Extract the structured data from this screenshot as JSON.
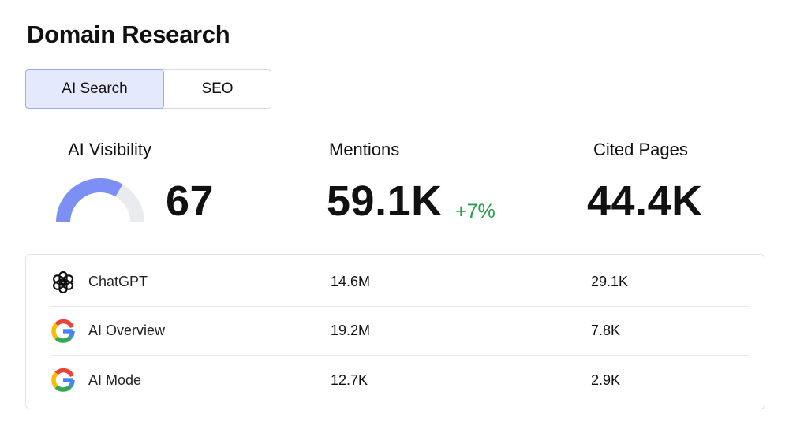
{
  "page": {
    "title": "Domain Research"
  },
  "tabs": [
    {
      "label": "AI Search",
      "active": true
    },
    {
      "label": "SEO",
      "active": false
    }
  ],
  "metrics": {
    "visibility": {
      "label": "AI Visibility",
      "value": "67",
      "gauge_fraction": 0.67
    },
    "mentions": {
      "label": "Mentions",
      "value": "59.1K",
      "delta": "+7%"
    },
    "cited_pages": {
      "label": "Cited Pages",
      "value": "44.4K"
    }
  },
  "providers": [
    {
      "icon": "chatgpt-icon",
      "name": "ChatGPT",
      "mentions": "14.6M",
      "cited": "29.1K"
    },
    {
      "icon": "google-icon",
      "name": "AI Overview",
      "mentions": "19.2M",
      "cited": "7.8K"
    },
    {
      "icon": "google-icon",
      "name": "AI Mode",
      "mentions": "12.7K",
      "cited": "2.9K"
    }
  ],
  "colors": {
    "accent": "#7b8ff5",
    "gauge_track": "#eaebee",
    "tab_active_bg": "#e4e9fc",
    "tab_active_border": "#9aabf2",
    "delta_positive": "#22a04b"
  }
}
